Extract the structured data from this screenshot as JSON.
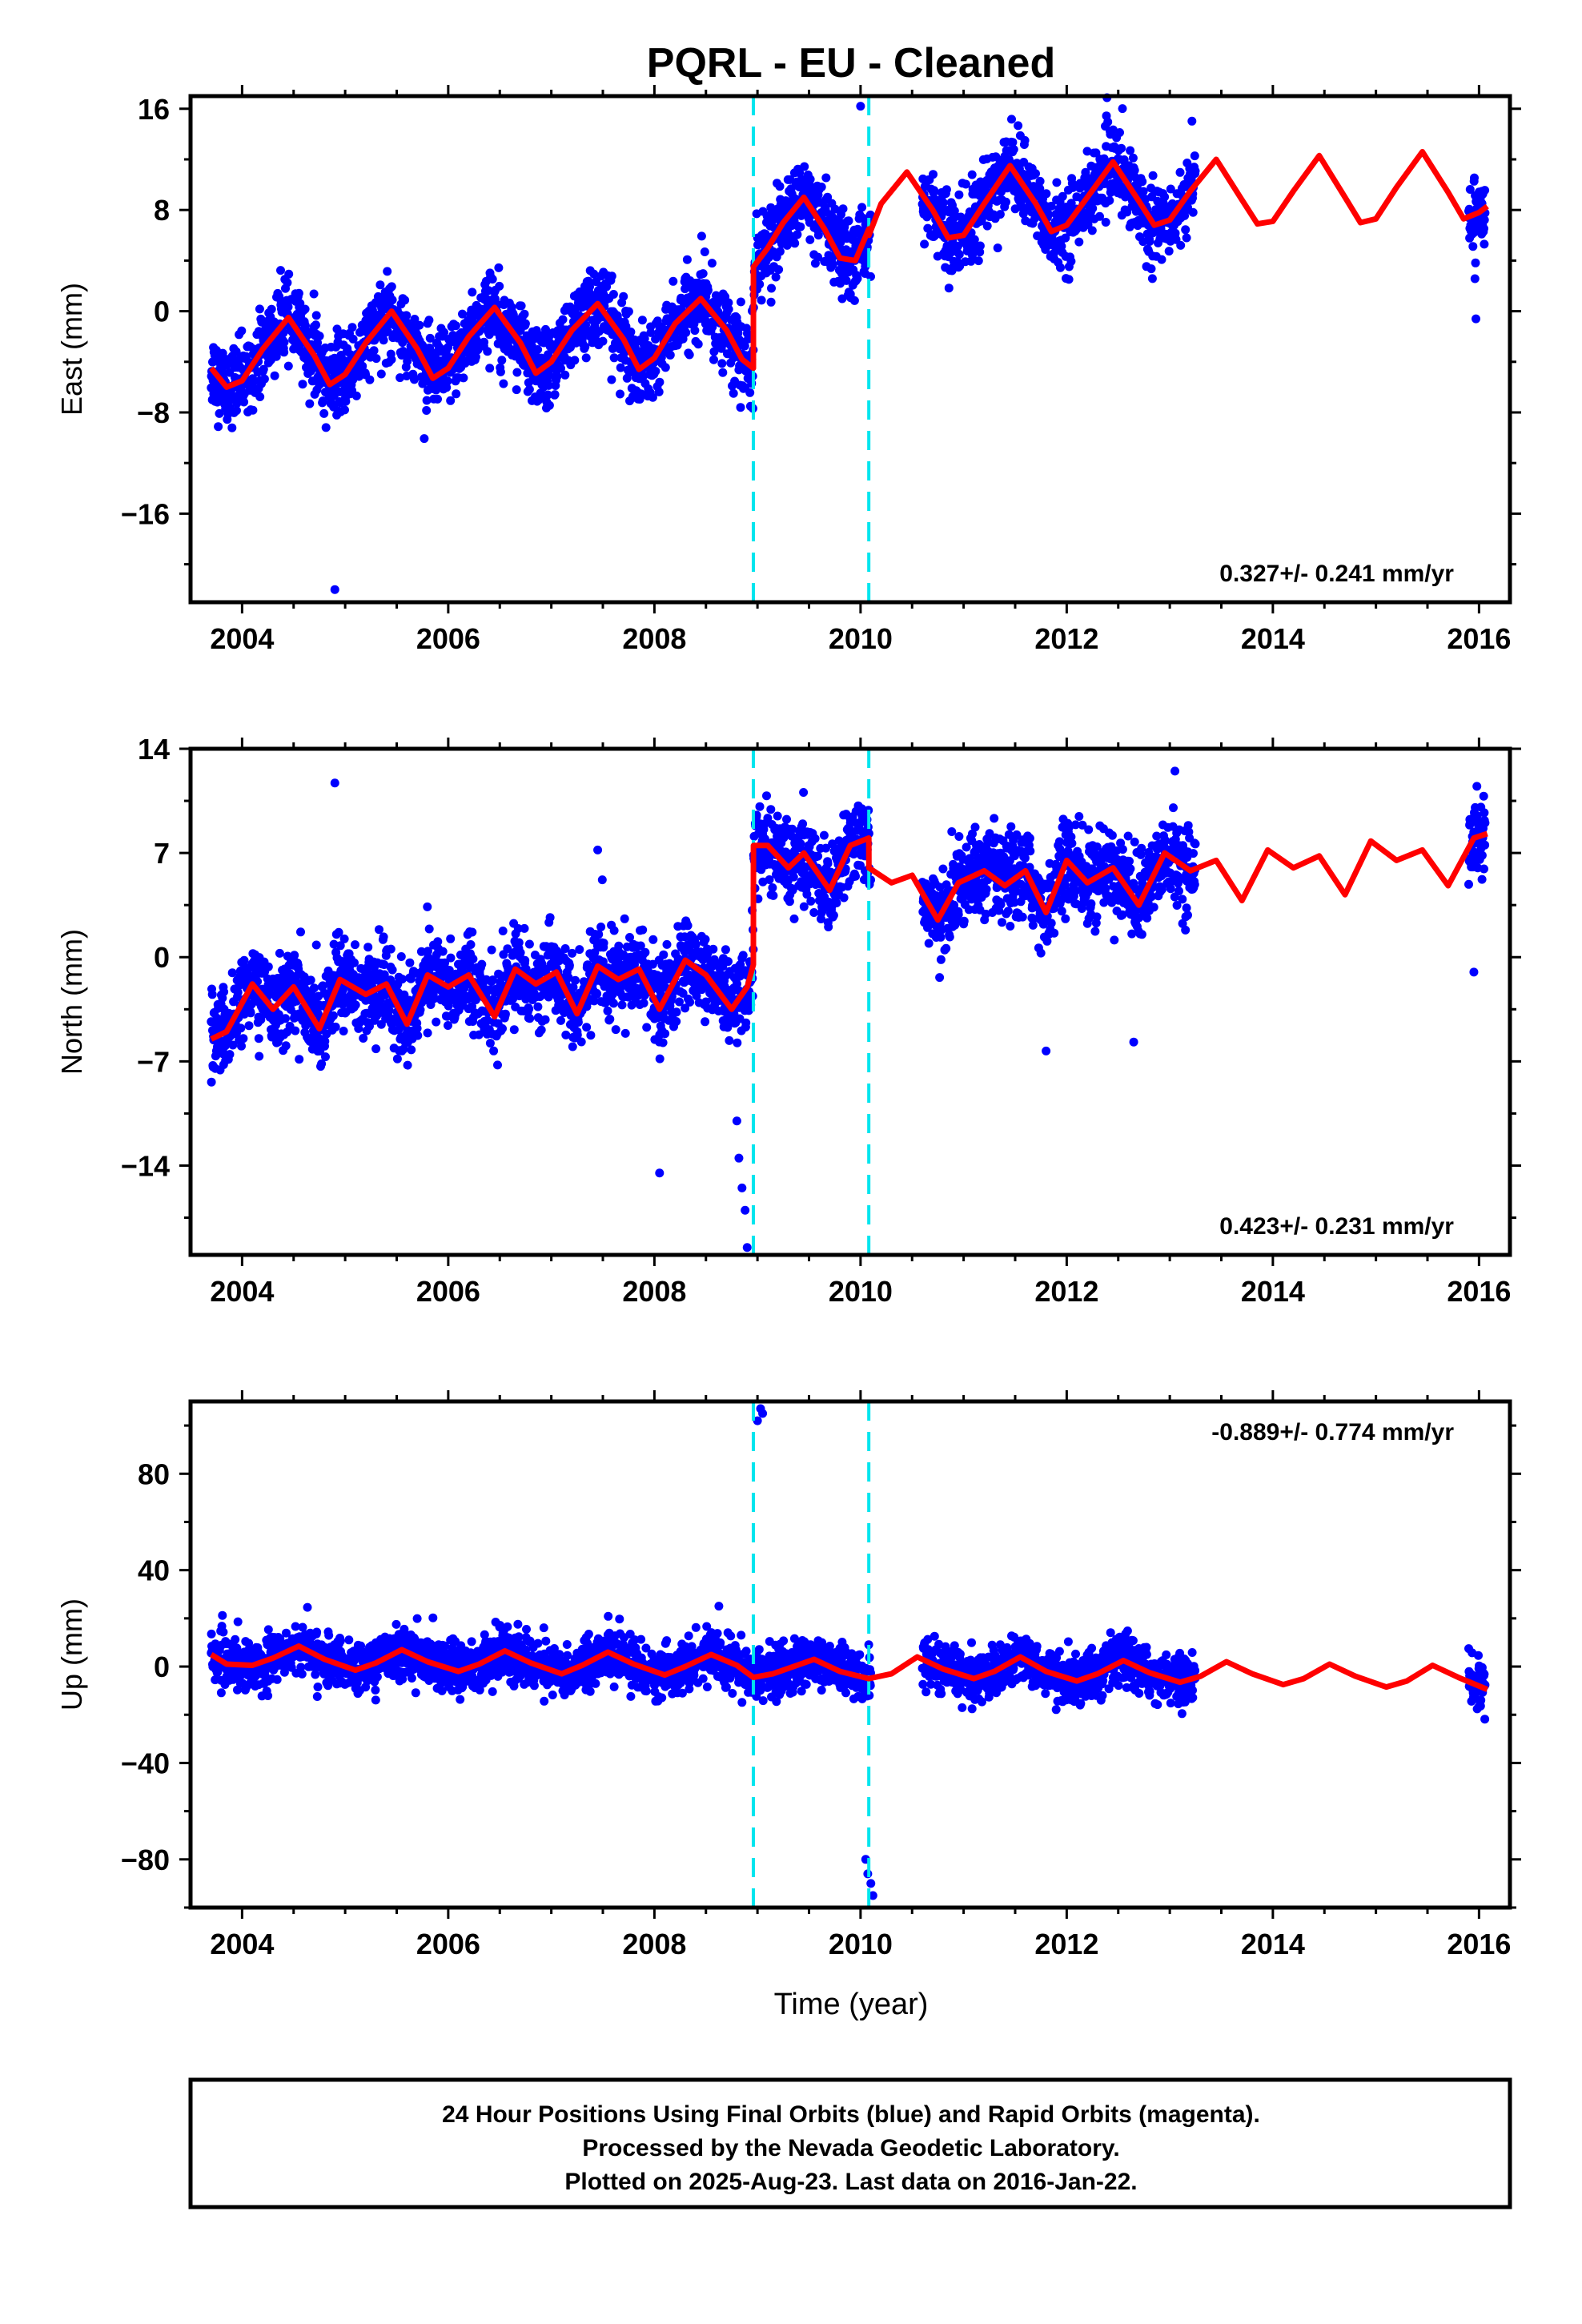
{
  "title": "PQRL  - EU - Cleaned",
  "x_axis_label": "Time (year)",
  "footer": [
    "24 Hour Positions Using Final Orbits (blue) and Rapid Orbits (magenta).",
    "Processed by the Nevada Geodetic Laboratory.",
    "Plotted on 2025-Aug-23. Last data on 2016-Jan-22."
  ],
  "colors": {
    "data": "#0000ff",
    "model": "#ff0000",
    "breaks": "#00e5ee"
  },
  "chart_data": [
    {
      "type": "scatter",
      "component": "East",
      "ylabel": "East (mm)",
      "rate": "0.327+/- 0.241 mm/yr",
      "rate_position": "bottom-right",
      "xlim": [
        2003.5,
        2016.3
      ],
      "ylim": [
        -23,
        17
      ],
      "x_ticks": [
        2004,
        2006,
        2008,
        2010,
        2012,
        2014,
        2016
      ],
      "y_ticks": [
        -16,
        -8,
        0,
        8,
        16
      ],
      "breaks": [
        2008.96,
        2010.08
      ],
      "data_coverage": [
        [
          2003.7,
          2010.1
        ],
        [
          2010.6,
          2013.25
        ],
        [
          2015.9,
          2016.06
        ]
      ],
      "series": [
        {
          "kind": "model",
          "x": [
            2003.7,
            2003.85,
            2004.0,
            2004.2,
            2004.45,
            2004.7,
            2004.85,
            2005.0,
            2005.2,
            2005.45,
            2005.7,
            2005.85,
            2006.0,
            2006.2,
            2006.45,
            2006.7,
            2006.85,
            2007.0,
            2007.2,
            2007.45,
            2007.7,
            2007.85,
            2008.0,
            2008.2,
            2008.45,
            2008.7,
            2008.85,
            2008.96,
            2008.961,
            2009.1,
            2009.25,
            2009.45,
            2009.65,
            2009.8,
            2009.95,
            2010.08,
            2010.081,
            2010.2,
            2010.45,
            2010.7,
            2010.85,
            2011.0,
            2011.2,
            2011.45,
            2011.7,
            2011.85,
            2012.0,
            2012.2,
            2012.45,
            2012.7,
            2012.85,
            2013.0,
            2013.2,
            2013.45,
            2013.7,
            2013.85,
            2014.0,
            2014.2,
            2014.45,
            2014.7,
            2014.85,
            2015.0,
            2015.2,
            2015.45,
            2015.7,
            2015.85,
            2016.0,
            2016.08
          ],
          "y": [
            -4.5,
            -6.0,
            -5.5,
            -3.0,
            -0.5,
            -3.5,
            -5.8,
            -5.0,
            -2.5,
            0.0,
            -3.0,
            -5.3,
            -4.5,
            -2.0,
            0.3,
            -2.5,
            -4.9,
            -4.0,
            -1.5,
            0.6,
            -2.2,
            -4.6,
            -3.7,
            -1.0,
            1.0,
            -1.5,
            -3.8,
            -4.5,
            3.5,
            5.0,
            7.0,
            9.0,
            6.5,
            4.2,
            4.0,
            6.5,
            6.0,
            8.5,
            11.0,
            8.0,
            5.8,
            6.0,
            8.5,
            11.5,
            8.5,
            6.3,
            6.8,
            9.0,
            11.8,
            8.7,
            6.8,
            7.2,
            9.5,
            12.0,
            8.8,
            6.9,
            7.1,
            9.5,
            12.3,
            9.0,
            7.0,
            7.3,
            9.8,
            12.6,
            9.4,
            7.3,
            7.8,
            8.3
          ]
        },
        {
          "kind": "outliers",
          "x": [
            2004.9,
            2010.0,
            2015.97
          ],
          "y": [
            -22.0,
            16.2,
            -0.6
          ]
        }
      ]
    },
    {
      "type": "scatter",
      "component": "North",
      "ylabel": "North (mm)",
      "rate": "0.423+/- 0.231 mm/yr",
      "rate_position": "bottom-right",
      "xlim": [
        2003.5,
        2016.3
      ],
      "ylim": [
        -20,
        14
      ],
      "x_ticks": [
        2004,
        2006,
        2008,
        2010,
        2012,
        2014,
        2016
      ],
      "y_ticks": [
        -14,
        -7,
        0,
        7,
        14
      ],
      "breaks": [
        2008.96,
        2010.08
      ],
      "data_coverage": [
        [
          2003.7,
          2010.1
        ],
        [
          2010.6,
          2013.25
        ],
        [
          2015.9,
          2016.06
        ]
      ],
      "series": [
        {
          "kind": "model",
          "x": [
            2003.7,
            2003.85,
            2004.1,
            2004.3,
            2004.5,
            2004.75,
            2004.95,
            2005.2,
            2005.4,
            2005.6,
            2005.8,
            2006.0,
            2006.2,
            2006.45,
            2006.65,
            2006.85,
            2007.05,
            2007.25,
            2007.45,
            2007.65,
            2007.85,
            2008.05,
            2008.3,
            2008.5,
            2008.75,
            2008.9,
            2008.96,
            2008.961,
            2009.1,
            2009.3,
            2009.45,
            2009.7,
            2009.9,
            2010.08,
            2010.081,
            2010.3,
            2010.5,
            2010.75,
            2010.95,
            2011.2,
            2011.4,
            2011.6,
            2011.8,
            2012.0,
            2012.2,
            2012.45,
            2012.7,
            2012.95,
            2013.2,
            2013.45,
            2013.7,
            2013.95,
            2014.2,
            2014.45,
            2014.7,
            2014.95,
            2015.2,
            2015.45,
            2015.7,
            2015.95,
            2016.08
          ],
          "y": [
            -5.5,
            -5.0,
            -1.8,
            -3.5,
            -2.0,
            -4.8,
            -1.5,
            -2.5,
            -1.8,
            -4.5,
            -1.2,
            -2.0,
            -1.2,
            -4.0,
            -0.8,
            -1.8,
            -1.0,
            -3.8,
            -0.6,
            -1.5,
            -0.8,
            -3.5,
            -0.2,
            -1.2,
            -3.5,
            -2.0,
            -0.5,
            7.5,
            7.5,
            6.0,
            7.0,
            4.5,
            7.5,
            8.0,
            6.0,
            5.0,
            5.5,
            2.5,
            5.0,
            5.8,
            4.8,
            5.8,
            3.0,
            6.5,
            5.0,
            6.0,
            3.5,
            7.0,
            5.8,
            6.5,
            3.8,
            7.2,
            6.0,
            6.8,
            4.2,
            7.8,
            6.5,
            7.2,
            4.8,
            8.0,
            8.3
          ]
        },
        {
          "kind": "outliers",
          "x": [
            2004.9,
            2007.45,
            2008.05,
            2008.8,
            2008.82,
            2008.85,
            2008.88,
            2008.9,
            2011.8,
            2012.65,
            2013.05,
            2015.95
          ],
          "y": [
            11.7,
            7.2,
            -14.5,
            -11.0,
            -13.5,
            -15.5,
            -17.0,
            -19.5,
            -6.3,
            -5.7,
            12.5,
            -1.0
          ]
        }
      ]
    },
    {
      "type": "scatter",
      "component": "Up",
      "ylabel": "Up (mm)",
      "rate": "-0.889+/- 0.774 mm/yr",
      "rate_position": "top-right",
      "xlim": [
        2003.5,
        2016.3
      ],
      "ylim": [
        -100,
        110
      ],
      "x_ticks": [
        2004,
        2006,
        2008,
        2010,
        2012,
        2014,
        2016
      ],
      "y_ticks": [
        -80,
        -40,
        0,
        40,
        80
      ],
      "breaks": [
        2008.96,
        2010.08
      ],
      "data_coverage": [
        [
          2003.7,
          2010.1
        ],
        [
          2010.6,
          2013.25
        ],
        [
          2015.9,
          2016.06
        ]
      ],
      "series": [
        {
          "kind": "model",
          "x": [
            2003.7,
            2003.85,
            2004.1,
            2004.3,
            2004.55,
            2004.8,
            2005.1,
            2005.3,
            2005.55,
            2005.8,
            2006.1,
            2006.3,
            2006.55,
            2006.8,
            2007.1,
            2007.3,
            2007.55,
            2007.8,
            2008.1,
            2008.3,
            2008.55,
            2008.8,
            2008.96,
            2009.15,
            2009.55,
            2009.8,
            2010.08,
            2010.3,
            2010.55,
            2010.8,
            2011.1,
            2011.3,
            2011.55,
            2011.8,
            2012.1,
            2012.3,
            2012.55,
            2012.8,
            2013.1,
            2013.3,
            2013.55,
            2013.8,
            2014.1,
            2014.3,
            2014.55,
            2014.8,
            2015.1,
            2015.3,
            2015.55,
            2015.8,
            2016.08
          ],
          "y": [
            5.0,
            1.0,
            0.5,
            3.5,
            8.5,
            3.0,
            -1.5,
            1.5,
            7.0,
            2.0,
            -2.0,
            1.0,
            6.5,
            1.5,
            -3.0,
            0.5,
            6.0,
            1.0,
            -3.5,
            0.0,
            5.0,
            0.5,
            -4.5,
            -3.0,
            3.0,
            -2.0,
            -5.0,
            -3.0,
            4.0,
            -1.0,
            -5.0,
            -2.0,
            4.0,
            -2.0,
            -6.0,
            -3.0,
            2.5,
            -2.5,
            -6.5,
            -4.0,
            2.0,
            -3.0,
            -7.5,
            -5.0,
            1.0,
            -4.0,
            -8.5,
            -6.0,
            0.5,
            -4.5,
            -9.5
          ]
        },
        {
          "kind": "outliers",
          "x": [
            2009.0,
            2009.03,
            2009.05,
            2010.05,
            2010.07,
            2010.1,
            2010.12
          ],
          "y": [
            102.0,
            107.0,
            105.0,
            -80.0,
            -86.0,
            -90.0,
            -95.0
          ]
        }
      ]
    }
  ]
}
